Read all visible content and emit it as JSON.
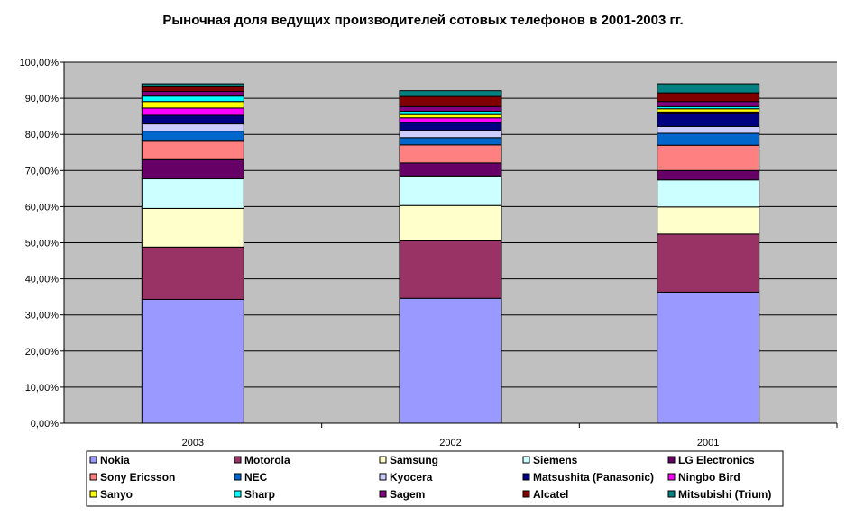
{
  "chart_data": {
    "type": "bar",
    "stacked": true,
    "title": "Рыночная доля ведущих производителей сотовых телефонов в 2001-2003 гг.",
    "xlabel": "",
    "ylabel": "",
    "ylim": [
      0,
      100
    ],
    "y_ticks": [
      0,
      10,
      20,
      30,
      40,
      50,
      60,
      70,
      80,
      90,
      100
    ],
    "y_tick_labels": [
      "0,00%",
      "10,00%",
      "20,00%",
      "30,00%",
      "40,00%",
      "50,00%",
      "60,00%",
      "70,00%",
      "80,00%",
      "90,00%",
      "100,00%"
    ],
    "grid": true,
    "plot_background": "#c0c0c0",
    "legend_position": "bottom",
    "categories": [
      "2003",
      "2002",
      "2001"
    ],
    "series": [
      {
        "name": "Nokia",
        "color": "#9999ff",
        "values": [
          34.3,
          34.6,
          36.3
        ]
      },
      {
        "name": "Motorola",
        "color": "#993366",
        "values": [
          14.5,
          15.9,
          16.1
        ]
      },
      {
        "name": "Samsung",
        "color": "#ffffcc",
        "values": [
          10.7,
          9.8,
          7.5
        ]
      },
      {
        "name": "Siemens",
        "color": "#ccffff",
        "values": [
          8.2,
          8.2,
          7.5
        ]
      },
      {
        "name": "LG Electronics",
        "color": "#660066",
        "values": [
          5.3,
          3.6,
          2.6
        ]
      },
      {
        "name": "Sony Ericsson",
        "color": "#ff8080",
        "values": [
          5.1,
          5.0,
          7.0
        ]
      },
      {
        "name": "NEC",
        "color": "#0066cc",
        "values": [
          2.8,
          2.0,
          3.3
        ]
      },
      {
        "name": "Kyocera",
        "color": "#ccccff",
        "values": [
          2.0,
          2.0,
          1.9
        ]
      },
      {
        "name": "Matsushita (Panasonic)",
        "color": "#000080",
        "values": [
          2.4,
          2.2,
          3.5
        ]
      },
      {
        "name": "Ningbo Bird",
        "color": "#ff00ff",
        "values": [
          2.0,
          1.3,
          0.5
        ]
      },
      {
        "name": "Sanyo",
        "color": "#ffff00",
        "values": [
          1.8,
          0.9,
          0.9
        ]
      },
      {
        "name": "Sharp",
        "color": "#00ffff",
        "values": [
          1.5,
          0.9,
          0.6
        ]
      },
      {
        "name": "Sagem",
        "color": "#800080",
        "values": [
          1.3,
          1.3,
          1.4
        ]
      },
      {
        "name": "Alcatel",
        "color": "#800000",
        "values": [
          1.3,
          2.8,
          2.4
        ]
      },
      {
        "name": "Mitsubishi (Trium)",
        "color": "#008080",
        "values": [
          0.8,
          1.6,
          2.5
        ]
      }
    ]
  }
}
